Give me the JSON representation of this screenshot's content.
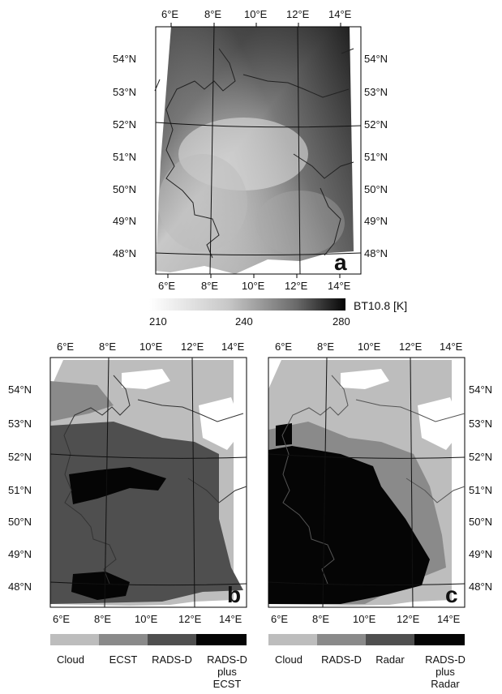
{
  "panel_a": {
    "letter": "a",
    "top_ticks": [
      "6°E",
      "8°E",
      "10°E",
      "12°E",
      "14°E"
    ],
    "bottom_ticks": [
      "6°E",
      "8°E",
      "10°E",
      "12°E",
      "14°E"
    ],
    "left_ticks": [
      "54°N",
      "53°N",
      "52°N",
      "51°N",
      "50°N",
      "49°N",
      "48°N"
    ],
    "right_ticks": [
      "54°N",
      "53°N",
      "52°N",
      "51°N",
      "50°N",
      "49°N",
      "48°N"
    ]
  },
  "colorbar_a": {
    "label": "BT10.8 [K]",
    "ticks": [
      "210",
      "240",
      "280"
    ]
  },
  "panel_b": {
    "letter": "b",
    "top_ticks": [
      "6°E",
      "8°E",
      "10°E",
      "12°E",
      "14°E"
    ],
    "bottom_ticks": [
      "6°E",
      "8°E",
      "10°E",
      "12°E",
      "14°E"
    ],
    "left_ticks": [
      "54°N",
      "53°N",
      "52°N",
      "51°N",
      "50°N",
      "49°N",
      "48°N"
    ],
    "legend": [
      {
        "label": "Cloud",
        "color": "#bdbdbd"
      },
      {
        "label": "ECST",
        "color": "#8a8a8a"
      },
      {
        "label": "RADS-D",
        "color": "#4f4f4f"
      },
      {
        "label": "RADS-D\nplus\nECST",
        "color": "#050505"
      }
    ]
  },
  "panel_c": {
    "letter": "c",
    "top_ticks": [
      "6°E",
      "8°E",
      "10°E",
      "12°E",
      "14°E"
    ],
    "bottom_ticks": [
      "6°E",
      "8°E",
      "10°E",
      "12°E",
      "14°E"
    ],
    "right_ticks": [
      "54°N",
      "53°N",
      "52°N",
      "51°N",
      "50°N",
      "49°N",
      "48°N"
    ],
    "legend": [
      {
        "label": "Cloud",
        "color": "#bdbdbd"
      },
      {
        "label": "RADS-D",
        "color": "#8a8a8a"
      },
      {
        "label": "Radar",
        "color": "#4f4f4f"
      },
      {
        "label": "RADS-D\nplus\nRadar",
        "color": "#050505"
      }
    ]
  }
}
